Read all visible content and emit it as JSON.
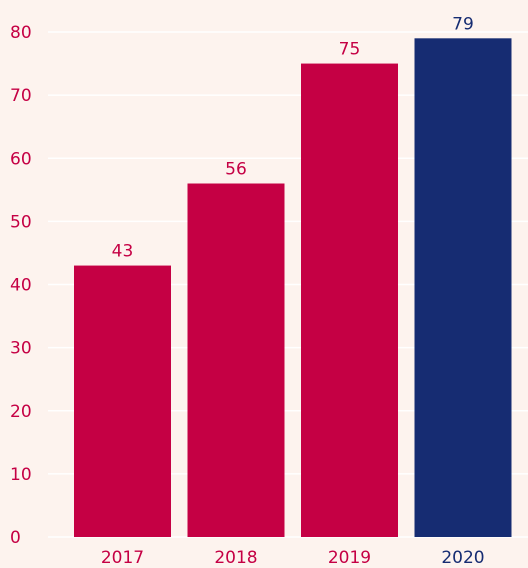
{
  "chart_data": {
    "type": "bar",
    "title": "",
    "xlabel": "",
    "ylabel": "",
    "categories": [
      "2017",
      "2018",
      "2019",
      "2020"
    ],
    "values": [
      43,
      56,
      75,
      79
    ],
    "data_labels": [
      "43",
      "56",
      "75",
      "79"
    ],
    "y_ticks": [
      "0",
      "10",
      "20",
      "30",
      "40",
      "50",
      "60",
      "70",
      "80"
    ],
    "ylim": [
      0,
      80
    ],
    "grid": true,
    "legend": "none",
    "colors": {
      "background": "#fdf3ee",
      "bar": "#c50044",
      "highlight_bar": "#162c72",
      "grid": "#ffffff",
      "axis_text": "#c50044",
      "highlight_text": "#162c72"
    },
    "highlight_category": "2020"
  }
}
